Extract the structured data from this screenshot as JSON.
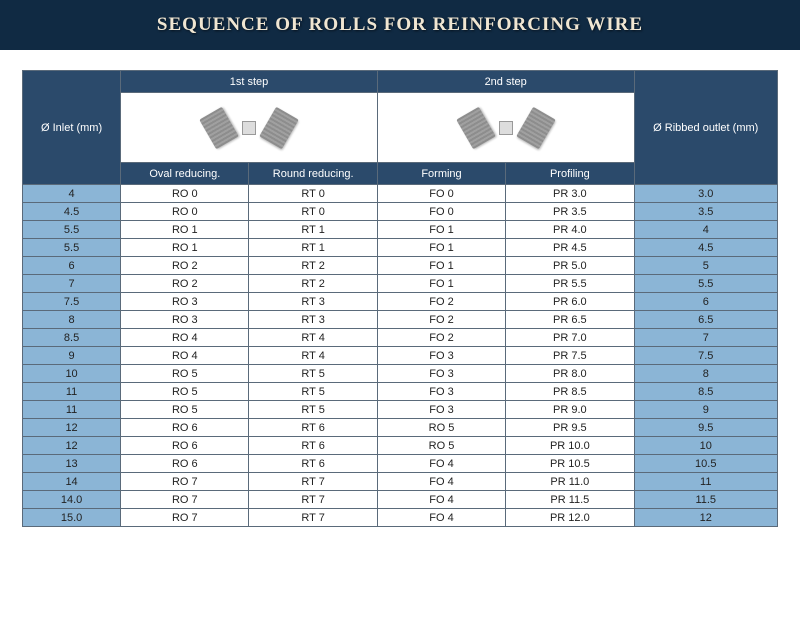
{
  "title": "SEQUENCE OF ROLLS FOR REINFORCING WIRE",
  "colors": {
    "header_bg": "#102a43",
    "title_color": "#f0e6d2",
    "th_bg": "#2b4a6b",
    "th_color": "#ffffff",
    "highlight_bg": "#8bb5d6",
    "cell_bg": "#ffffff",
    "border": "#5a6a7a"
  },
  "columns": {
    "inlet": "Ø Inlet (mm)",
    "step1": "1st step",
    "step2": "2nd step",
    "outlet": "Ø Ribbed outlet (mm)",
    "oval": "Oval reducing.",
    "round": "Round reducing.",
    "forming": "Forming",
    "profiling": "Profiling"
  },
  "col_widths_pct": [
    13,
    17,
    17,
    17,
    17,
    19
  ],
  "rows": [
    {
      "inlet": "4",
      "oval": "RO 0",
      "round": "RT 0",
      "forming": "FO 0",
      "profiling": "PR 3.0",
      "outlet": "3.0"
    },
    {
      "inlet": "4.5",
      "oval": "RO 0",
      "round": "RT 0",
      "forming": "FO 0",
      "profiling": "PR 3.5",
      "outlet": "3.5"
    },
    {
      "inlet": "5.5",
      "oval": "RO 1",
      "round": "RT 1",
      "forming": "FO 1",
      "profiling": "PR 4.0",
      "outlet": "4"
    },
    {
      "inlet": "5.5",
      "oval": "RO 1",
      "round": "RT 1",
      "forming": "FO 1",
      "profiling": "PR 4.5",
      "outlet": "4.5"
    },
    {
      "inlet": "6",
      "oval": "RO 2",
      "round": "RT 2",
      "forming": "FO 1",
      "profiling": "PR 5.0",
      "outlet": "5"
    },
    {
      "inlet": "7",
      "oval": "RO 2",
      "round": "RT 2",
      "forming": "FO 1",
      "profiling": "PR 5.5",
      "outlet": "5.5"
    },
    {
      "inlet": "7.5",
      "oval": "RO 3",
      "round": "RT 3",
      "forming": "FO 2",
      "profiling": "PR 6.0",
      "outlet": "6"
    },
    {
      "inlet": "8",
      "oval": "RO 3",
      "round": "RT 3",
      "forming": "FO 2",
      "profiling": "PR 6.5",
      "outlet": "6.5"
    },
    {
      "inlet": "8.5",
      "oval": "RO 4",
      "round": "RT 4",
      "forming": "FO 2",
      "profiling": "PR 7.0",
      "outlet": "7"
    },
    {
      "inlet": "9",
      "oval": "RO 4",
      "round": "RT 4",
      "forming": "FO 3",
      "profiling": "PR 7.5",
      "outlet": "7.5"
    },
    {
      "inlet": "10",
      "oval": "RO 5",
      "round": "RT 5",
      "forming": "FO 3",
      "profiling": "PR 8.0",
      "outlet": "8"
    },
    {
      "inlet": "11",
      "oval": "RO 5",
      "round": "RT 5",
      "forming": "FO 3",
      "profiling": "PR 8.5",
      "outlet": "8.5"
    },
    {
      "inlet": "11",
      "oval": "RO 5",
      "round": "RT 5",
      "forming": "FO 3",
      "profiling": "PR 9.0",
      "outlet": "9"
    },
    {
      "inlet": "12",
      "oval": "RO 6",
      "round": "RT 6",
      "forming": "RO 5",
      "profiling": "PR 9.5",
      "outlet": "9.5"
    },
    {
      "inlet": "12",
      "oval": "RO 6",
      "round": "RT 6",
      "forming": "RO 5",
      "profiling": "PR 10.0",
      "outlet": "10"
    },
    {
      "inlet": "13",
      "oval": "RO 6",
      "round": "RT 6",
      "forming": "FO 4",
      "profiling": "PR 10.5",
      "outlet": "10.5"
    },
    {
      "inlet": "14",
      "oval": "RO 7",
      "round": "RT 7",
      "forming": "FO 4",
      "profiling": "PR 11.0",
      "outlet": "11"
    },
    {
      "inlet": "14.0",
      "oval": "RO 7",
      "round": "RT 7",
      "forming": "FO 4",
      "profiling": "PR 11.5",
      "outlet": "11.5"
    },
    {
      "inlet": "15.0",
      "oval": "RO 7",
      "round": "RT 7",
      "forming": "FO 4",
      "profiling": "PR 12.0",
      "outlet": "12"
    }
  ]
}
